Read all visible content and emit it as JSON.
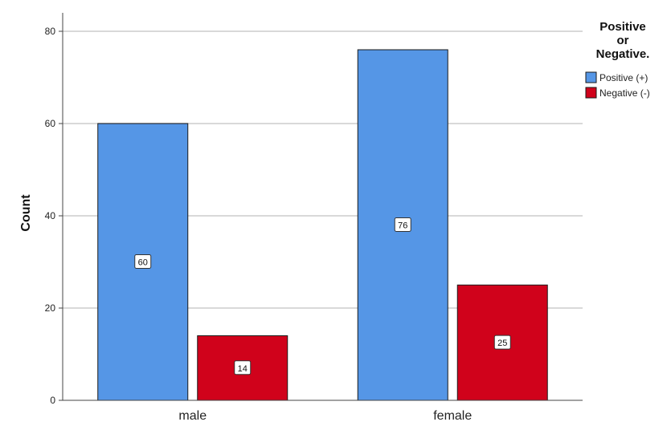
{
  "chart_data": {
    "type": "bar",
    "categories": [
      "male",
      "female"
    ],
    "series": [
      {
        "name": "Positive (+)",
        "values": [
          60,
          76
        ],
        "color": "#5596e6"
      },
      {
        "name": "Negative (-)",
        "values": [
          14,
          25
        ],
        "color": "#d0021b"
      }
    ],
    "xlabel": "",
    "ylabel": "Count",
    "ylim": [
      0,
      80
    ],
    "yticks": [
      0,
      20,
      40,
      60,
      80
    ],
    "grid": true,
    "legend": {
      "title_lines": [
        "Positive",
        "or",
        "Negative."
      ],
      "placement": "top-right"
    },
    "data_labels": true
  }
}
